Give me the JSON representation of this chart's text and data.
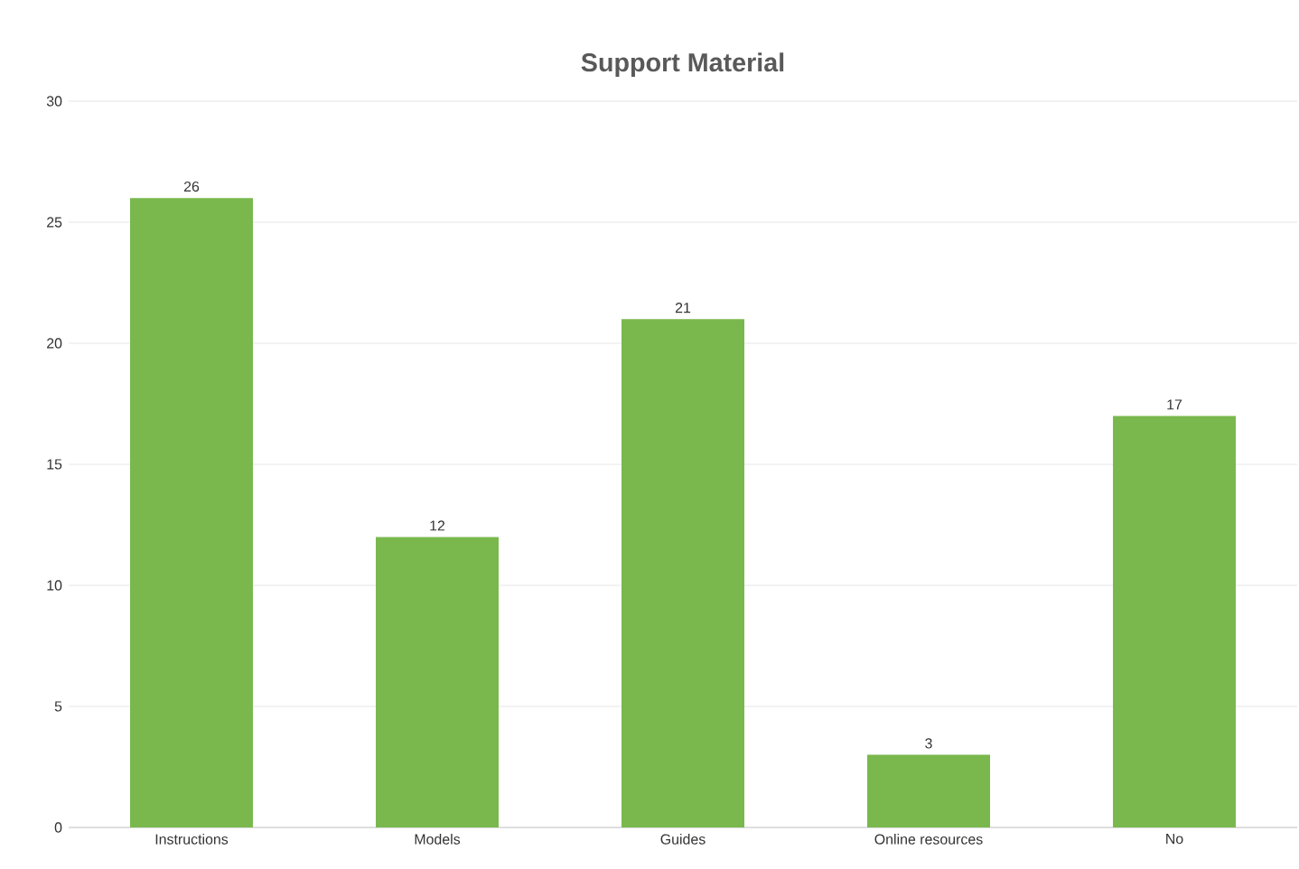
{
  "chart_data": {
    "type": "bar",
    "title": "Support Material",
    "categories": [
      "Instructions",
      "Models",
      "Guides",
      "Online resources",
      "No"
    ],
    "values": [
      26,
      12,
      21,
      3,
      17
    ],
    "color": "#7ab84e",
    "ylim": [
      0,
      30
    ],
    "yticks": [
      0,
      5,
      10,
      15,
      20,
      25,
      30
    ],
    "grid": "y",
    "data_labels": true
  }
}
